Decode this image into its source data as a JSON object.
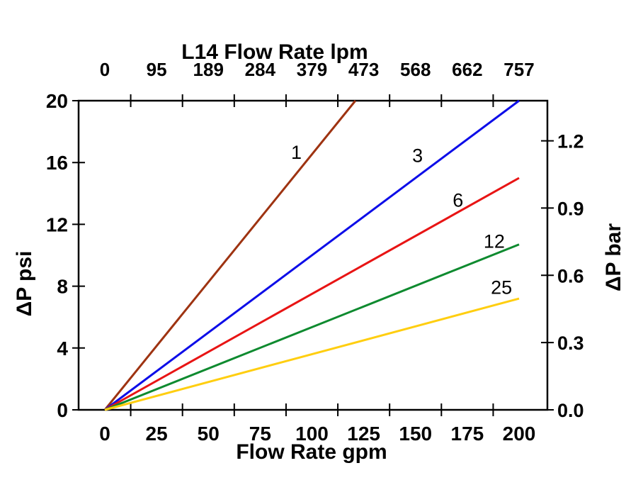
{
  "chart_data": {
    "type": "line",
    "title": "L14 Flow Rate lpm",
    "axes": {
      "top": {
        "title": "L14 Flow Rate lpm",
        "unit": "lpm",
        "tick_labels": [
          "0",
          "95",
          "189",
          "284",
          "379",
          "473",
          "568",
          "662",
          "757"
        ]
      },
      "bottom": {
        "title": "Flow Rate gpm",
        "unit": "gpm",
        "tick_values": [
          0,
          25,
          50,
          75,
          100,
          125,
          150,
          175,
          200
        ],
        "minor_tick_values": [
          12.5,
          37.5,
          62.5,
          87.5,
          112.5,
          137.5,
          162.5,
          187.5
        ],
        "range": [
          0,
          200
        ]
      },
      "left": {
        "title": "ΔP psi",
        "unit": "psi",
        "tick_values": [
          0,
          4,
          8,
          12,
          16,
          20
        ],
        "range": [
          0,
          20
        ]
      },
      "right": {
        "title": "ΔP bar",
        "unit": "bar",
        "tick_values_bar": [
          0.0,
          0.3,
          0.6,
          0.9,
          1.2
        ],
        "tick_labels": [
          "0.0",
          "0.3",
          "0.6",
          "0.9",
          "1.2"
        ],
        "psi_per_bar": 14.504
      }
    },
    "grid": "off",
    "series": [
      {
        "label": "1",
        "color": "#9E3311",
        "points_gpm_psi": [
          [
            0,
            0
          ],
          [
            121,
            20
          ]
        ],
        "label_pos_gpm_psi": [
          92.5,
          16.7
        ]
      },
      {
        "label": "3",
        "color": "#0D0DE8",
        "points_gpm_psi": [
          [
            0,
            0
          ],
          [
            200,
            20
          ]
        ],
        "label_pos_gpm_psi": [
          151,
          16.5
        ]
      },
      {
        "label": "6",
        "color": "#E81414",
        "points_gpm_psi": [
          [
            0,
            0
          ],
          [
            200,
            15.0
          ]
        ],
        "label_pos_gpm_psi": [
          170.5,
          13.6
        ]
      },
      {
        "label": "12",
        "color": "#0E8A2F",
        "points_gpm_psi": [
          [
            0,
            0
          ],
          [
            200,
            10.7
          ]
        ],
        "label_pos_gpm_psi": [
          188,
          10.95
        ]
      },
      {
        "label": "25",
        "color": "#FFCE10",
        "points_gpm_psi": [
          [
            0,
            0
          ],
          [
            200,
            7.2
          ]
        ],
        "label_pos_gpm_psi": [
          191.5,
          7.95
        ]
      }
    ]
  }
}
